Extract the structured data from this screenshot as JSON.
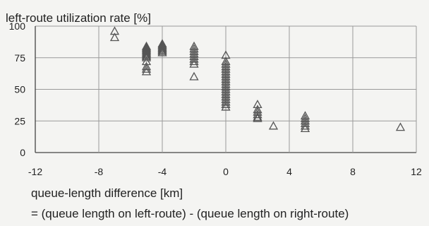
{
  "chart_data": {
    "type": "scatter",
    "ylabel": "left-route utilization rate [%]",
    "xlabel": "queue-length difference [km]",
    "xlabel_formula": "= (queue length on left-route) - (queue length on right-route)",
    "xlim": [
      -12,
      12
    ],
    "ylim": [
      0,
      100
    ],
    "x_ticks": [
      "-12",
      "-8",
      "-4",
      "0",
      "4",
      "8",
      "12"
    ],
    "y_ticks": [
      "0",
      "25",
      "50",
      "75",
      "100"
    ],
    "grid": true,
    "marker": "open-triangle",
    "series": [
      {
        "points": [
          [
            -7,
            96
          ],
          [
            -7,
            91
          ],
          [
            -5,
            84
          ],
          [
            -5,
            83
          ],
          [
            -5,
            82
          ],
          [
            -5,
            81
          ],
          [
            -5,
            80
          ],
          [
            -5,
            79
          ],
          [
            -5,
            78
          ],
          [
            -5,
            77
          ],
          [
            -5,
            76
          ],
          [
            -5,
            75
          ],
          [
            -5,
            72
          ],
          [
            -5,
            68
          ],
          [
            -5,
            66
          ],
          [
            -5,
            64
          ],
          [
            -4,
            86
          ],
          [
            -4,
            85
          ],
          [
            -4,
            84
          ],
          [
            -4,
            83
          ],
          [
            -4,
            82
          ],
          [
            -4,
            81
          ],
          [
            -4,
            80
          ],
          [
            -4,
            79
          ],
          [
            -2,
            84
          ],
          [
            -2,
            82
          ],
          [
            -2,
            80
          ],
          [
            -2,
            78
          ],
          [
            -2,
            76
          ],
          [
            -2,
            74
          ],
          [
            -2,
            72
          ],
          [
            -2,
            70
          ],
          [
            -2,
            60
          ],
          [
            0,
            77
          ],
          [
            0,
            72
          ],
          [
            0,
            70
          ],
          [
            0,
            68
          ],
          [
            0,
            66
          ],
          [
            0,
            64
          ],
          [
            0,
            62
          ],
          [
            0,
            60
          ],
          [
            0,
            58
          ],
          [
            0,
            56
          ],
          [
            0,
            54
          ],
          [
            0,
            52
          ],
          [
            0,
            50
          ],
          [
            0,
            48
          ],
          [
            0,
            46
          ],
          [
            0,
            44
          ],
          [
            0,
            42
          ],
          [
            0,
            40
          ],
          [
            0,
            38
          ],
          [
            0,
            36
          ],
          [
            2,
            38
          ],
          [
            2,
            34
          ],
          [
            2,
            32
          ],
          [
            2,
            30
          ],
          [
            2,
            28
          ],
          [
            2,
            27
          ],
          [
            3,
            21
          ],
          [
            5,
            29
          ],
          [
            5,
            27
          ],
          [
            5,
            25
          ],
          [
            5,
            23
          ],
          [
            5,
            21
          ],
          [
            5,
            19
          ],
          [
            11,
            20
          ]
        ]
      }
    ]
  }
}
